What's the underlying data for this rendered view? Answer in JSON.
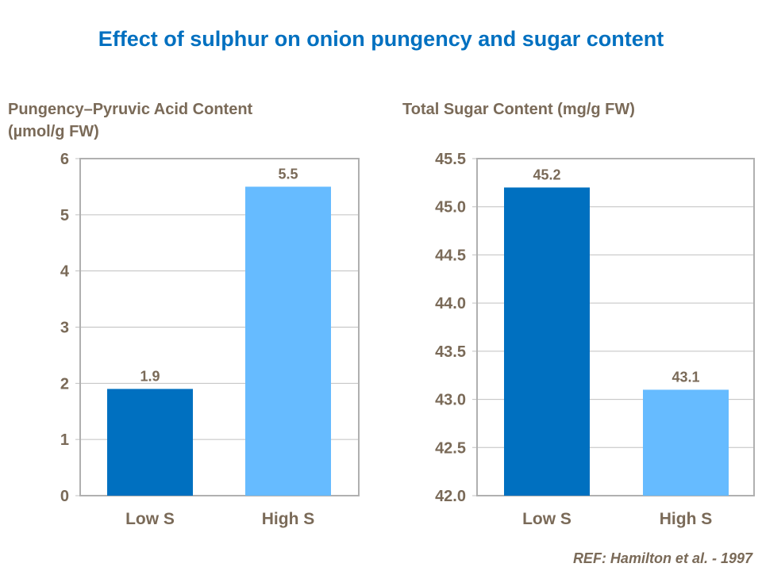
{
  "title": "Effect of sulphur on onion pungency and sugar content",
  "reference": "REF: Hamilton et al. - 1997",
  "colors": {
    "low": "#0070c0",
    "high": "#66bbff",
    "text": "#7a6a58",
    "title": "#0070c0",
    "grid": "#c0c0c0"
  },
  "chart_data": [
    {
      "type": "bar",
      "ylabel_line1": "Pungency–Pyruvic Acid Content",
      "ylabel_line2": "(µmol/g FW)",
      "categories": [
        "Low S",
        "High S"
      ],
      "values": [
        1.9,
        5.5
      ],
      "data_labels": [
        "1.9",
        "5.5"
      ],
      "ylim": [
        0,
        6
      ],
      "yticks": [
        "0",
        "1",
        "2",
        "3",
        "4",
        "5",
        "6"
      ],
      "grid": true
    },
    {
      "type": "bar",
      "ylabel_line1": "Total Sugar Content (mg/g FW)",
      "ylabel_line2": "",
      "categories": [
        "Low S",
        "High S"
      ],
      "values": [
        45.2,
        43.1
      ],
      "data_labels": [
        "45.2",
        "43.1"
      ],
      "ylim": [
        42,
        45.5
      ],
      "yticks": [
        "42.0",
        "42.5",
        "43.0",
        "43.5",
        "44.0",
        "44.5",
        "45.0",
        "45.5"
      ],
      "grid": true
    }
  ]
}
